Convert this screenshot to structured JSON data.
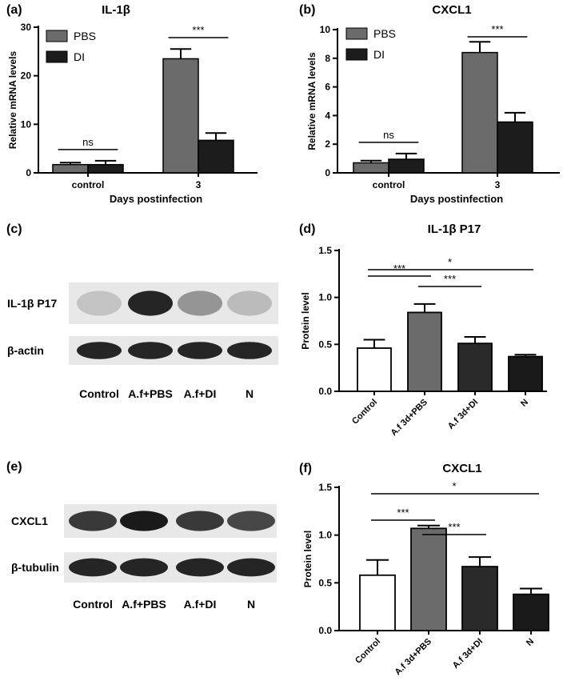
{
  "colors": {
    "pbs": "#6b6b6b",
    "di": "#1c1c1c",
    "axis": "#000000",
    "blot_bg": "#e8e8e8",
    "band": "#1a1a1a"
  },
  "chart_data": [
    {
      "panel": "(a)",
      "type": "bar",
      "title": "IL-1β",
      "categories": [
        "control",
        "3"
      ],
      "xlabel": "Days postinfection",
      "ylabel": "Relative mRNA levels",
      "ylim": [
        0,
        30
      ],
      "yticks": [
        "0",
        "10",
        "20",
        "30"
      ],
      "series": [
        {
          "name": "PBS",
          "values": [
            1.7,
            23.5
          ],
          "errors": [
            0.4,
            2.0
          ]
        },
        {
          "name": "DI",
          "values": [
            1.7,
            6.7
          ],
          "errors": [
            0.8,
            1.5
          ]
        }
      ],
      "annotations": [
        {
          "text": "ns",
          "category": 0
        },
        {
          "text": "***",
          "category": 1
        }
      ],
      "legend": "top-left"
    },
    {
      "panel": "(b)",
      "type": "bar",
      "title": "CXCL1",
      "categories": [
        "control",
        "3"
      ],
      "xlabel": "Days postinfection",
      "ylabel": "Relative mRNA levels",
      "ylim": [
        0,
        10
      ],
      "yticks": [
        "0",
        "2",
        "4",
        "6",
        "8",
        "10"
      ],
      "series": [
        {
          "name": "PBS",
          "values": [
            0.7,
            8.4
          ],
          "errors": [
            0.15,
            0.75
          ]
        },
        {
          "name": "DI",
          "values": [
            0.95,
            3.55
          ],
          "errors": [
            0.4,
            0.65
          ]
        }
      ],
      "annotations": [
        {
          "text": "ns",
          "category": 0
        },
        {
          "text": "***",
          "category": 1
        }
      ],
      "legend": "top-left"
    },
    {
      "panel": "(d)",
      "type": "bar",
      "title": "IL-1β P17",
      "categories": [
        "Control",
        "A.f 3d+PBS",
        "A.f 3d+DI",
        "N"
      ],
      "ylabel": "Protein level",
      "ylim": [
        0,
        1.5
      ],
      "yticks": [
        "0.0",
        "0.5",
        "1.0",
        "1.5"
      ],
      "values": [
        0.46,
        0.84,
        0.51,
        0.37
      ],
      "errors": [
        0.09,
        0.09,
        0.07,
        0.02
      ],
      "bar_colors": [
        "#ffffff",
        "#6b6b6b",
        "#2a2a2a",
        "#1a1a1a"
      ],
      "comparisons": [
        {
          "from": 0,
          "to": 1,
          "text": "***"
        },
        {
          "from": 1,
          "to": 2,
          "text": "***"
        },
        {
          "from": 0,
          "to": 3,
          "text": "*"
        }
      ]
    },
    {
      "panel": "(f)",
      "type": "bar",
      "title": "CXCL1",
      "categories": [
        "Control",
        "A.f 3d+PBS",
        "A.f 3d+DI",
        "N"
      ],
      "ylabel": "Protein level",
      "ylim": [
        0,
        1.5
      ],
      "yticks": [
        "0.0",
        "0.5",
        "1.0",
        "1.5"
      ],
      "values": [
        0.58,
        1.07,
        0.67,
        0.38
      ],
      "errors": [
        0.16,
        0.03,
        0.1,
        0.06
      ],
      "bar_colors": [
        "#ffffff",
        "#6b6b6b",
        "#2a2a2a",
        "#1a1a1a"
      ],
      "comparisons": [
        {
          "from": 0,
          "to": 1,
          "text": "***"
        },
        {
          "from": 1,
          "to": 2,
          "text": "***"
        },
        {
          "from": 0,
          "to": 3,
          "text": "*"
        }
      ]
    }
  ],
  "blots": [
    {
      "panel": "(c)",
      "rows": [
        {
          "label": "IL-1β P17",
          "intensities": [
            0.18,
            0.95,
            0.4,
            0.22
          ]
        },
        {
          "label": "β-actin",
          "intensities": [
            0.95,
            0.95,
            0.95,
            0.95
          ]
        }
      ],
      "lanes": [
        "Control",
        "A.f+PBS",
        "A.f+DI",
        "N"
      ]
    },
    {
      "panel": "(e)",
      "rows": [
        {
          "label": "CXCL1",
          "intensities": [
            0.85,
            1.0,
            0.85,
            0.78
          ]
        },
        {
          "label": "β-tubulin",
          "intensities": [
            0.95,
            0.95,
            0.95,
            0.95
          ]
        }
      ],
      "lanes": [
        "Control",
        "A.f+PBS",
        "A.f+DI",
        "N"
      ]
    }
  ]
}
